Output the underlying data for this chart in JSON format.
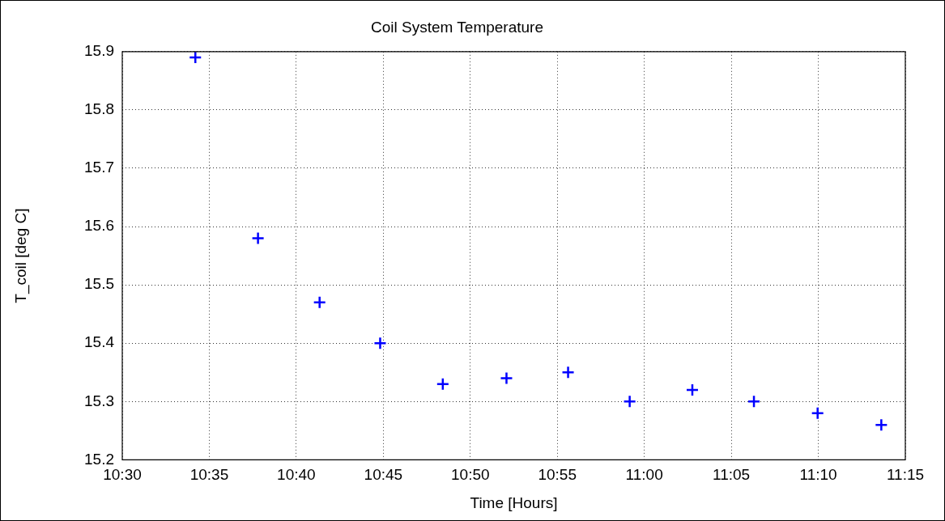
{
  "chart_data": {
    "type": "scatter",
    "title": "Coil System Temperature",
    "xlabel": "Time [Hours]",
    "ylabel": "T_coil [deg C]",
    "x": [
      10.57,
      10.63,
      10.689,
      10.747,
      10.807,
      10.868,
      10.927,
      10.986,
      11.046,
      11.105,
      11.166,
      11.227
    ],
    "series": [
      {
        "color": "#0000ff",
        "values": [
          15.89,
          15.58,
          15.47,
          15.4,
          15.33,
          15.34,
          15.35,
          15.3,
          15.32,
          15.3,
          15.28,
          15.26
        ]
      }
    ],
    "xlim": [
      10.5,
      11.25
    ],
    "xticks": [
      {
        "value": 10.5,
        "label": "10:30"
      },
      {
        "value": 10.583333,
        "label": "10:35"
      },
      {
        "value": 10.666667,
        "label": "10:40"
      },
      {
        "value": 10.75,
        "label": "10:45"
      },
      {
        "value": 10.833333,
        "label": "10:50"
      },
      {
        "value": 10.916667,
        "label": "10:55"
      },
      {
        "value": 11,
        "label": "11:00"
      },
      {
        "value": 11.083333,
        "label": "11:05"
      },
      {
        "value": 11.166667,
        "label": "11:10"
      },
      {
        "value": 11.25,
        "label": "11:15"
      }
    ],
    "ylim": [
      15.2,
      15.9
    ],
    "yticks": [
      15.2,
      15.3,
      15.4,
      15.5,
      15.6,
      15.7,
      15.8,
      15.9
    ],
    "grid": true,
    "marker": "cross",
    "legend": false
  }
}
